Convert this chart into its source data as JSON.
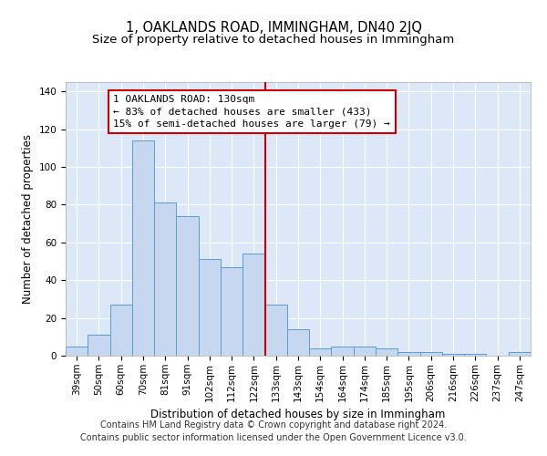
{
  "title": "1, OAKLANDS ROAD, IMMINGHAM, DN40 2JQ",
  "subtitle": "Size of property relative to detached houses in Immingham",
  "xlabel": "Distribution of detached houses by size in Immingham",
  "ylabel": "Number of detached properties",
  "categories": [
    "39sqm",
    "50sqm",
    "60sqm",
    "70sqm",
    "81sqm",
    "91sqm",
    "102sqm",
    "112sqm",
    "122sqm",
    "133sqm",
    "143sqm",
    "154sqm",
    "164sqm",
    "174sqm",
    "185sqm",
    "195sqm",
    "206sqm",
    "216sqm",
    "226sqm",
    "237sqm",
    "247sqm"
  ],
  "values": [
    5,
    11,
    27,
    114,
    81,
    74,
    51,
    47,
    54,
    27,
    14,
    4,
    5,
    5,
    4,
    2,
    2,
    1,
    1,
    0,
    2
  ],
  "bar_color": "#c5d8f0",
  "bar_edge_color": "#5b9bd5",
  "vline_x": 8.5,
  "vline_color": "#cc0000",
  "annotation_line1": "1 OAKLANDS ROAD: 130sqm",
  "annotation_line2": "← 83% of detached houses are smaller (433)",
  "annotation_line3": "15% of semi-detached houses are larger (79) →",
  "annotation_box_color": "#ffffff",
  "annotation_box_edge_color": "#cc0000",
  "ylim": [
    0,
    145
  ],
  "yticks": [
    0,
    20,
    40,
    60,
    80,
    100,
    120,
    140
  ],
  "footer": "Contains HM Land Registry data © Crown copyright and database right 2024.\nContains public sector information licensed under the Open Government Licence v3.0.",
  "background_color": "#dce8f8",
  "title_fontsize": 10.5,
  "subtitle_fontsize": 9.5,
  "axis_label_fontsize": 8.5,
  "tick_fontsize": 7.5,
  "annotation_fontsize": 8,
  "footer_fontsize": 7
}
